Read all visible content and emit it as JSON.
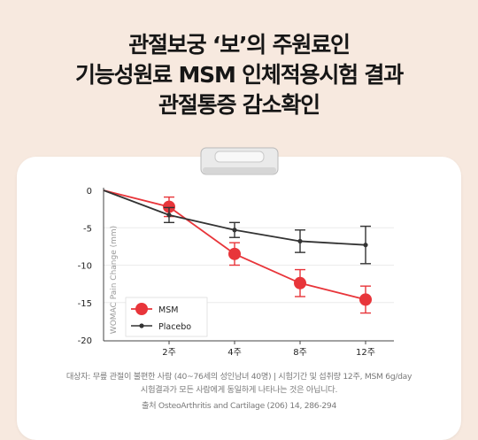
{
  "headline": {
    "line1": "관절보궁 ‘보’의 주원료인",
    "line2": "기능성원료 MSM 인체적용시험 결과",
    "line3": "관절통증 감소확인"
  },
  "notes": {
    "subjects": "대상자: 무릎 관절이 불편한 사람 (40~76세의 성인남녀 40명) | 시험기간 및 섭취량 12주, MSM 6g/day",
    "disclaimer": "시험결과가 모든 사람에게 동일하게 나타나는 것은 아닙니다.",
    "source": "출처 OsteoArthritis and Cartilage (206) 14, 286-294"
  },
  "chart_data": {
    "type": "line",
    "x": [
      "0",
      "2주",
      "4주",
      "8주",
      "12주"
    ],
    "x_tick_labels": [
      "2주",
      "4주",
      "8주",
      "12주"
    ],
    "ylabel": "WOMAC Pain Change (mm)",
    "ylim": [
      -20,
      0
    ],
    "y_ticks": [
      0,
      -5,
      -10,
      -15,
      -20
    ],
    "legend_position": "bottom-left",
    "series": [
      {
        "name": "MSM",
        "color": "#e8353a",
        "values": [
          0,
          -2.2,
          -8.5,
          -12.4,
          -14.6
        ],
        "error": [
          0,
          1.3,
          1.5,
          1.8,
          1.8
        ]
      },
      {
        "name": "Placebo",
        "color": "#333333",
        "values": [
          0,
          -3.3,
          -5.3,
          -6.8,
          -7.3
        ],
        "error": [
          0,
          1.0,
          1.0,
          1.5,
          2.5
        ]
      }
    ]
  }
}
